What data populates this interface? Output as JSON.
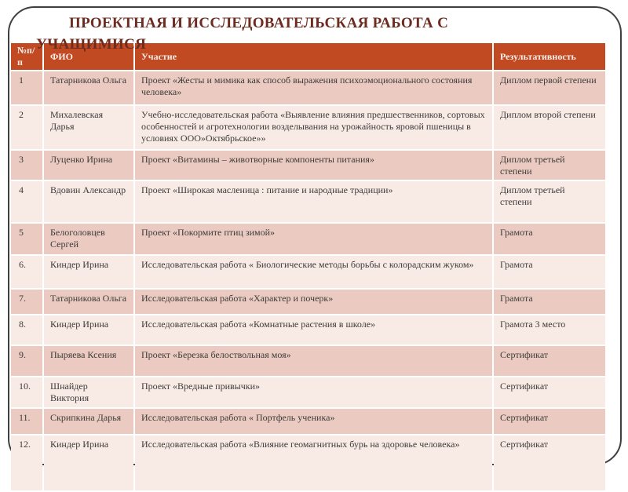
{
  "title": {
    "line1": "ПРОЕКТНАЯ И ИССЛЕДОВАТЕЛЬСКАЯ РАБОТА С",
    "line2": "УЧАЩИМИСЯ"
  },
  "table": {
    "columns": [
      "№п/п",
      "ФИО",
      "Участие",
      "Результативность"
    ],
    "rows": [
      {
        "num": "1",
        "fio": "Татарникова Ольга",
        "uchastie": "Проект «Жесты и мимика как способ выражения психоэмоционального состояния человека»",
        "result": "Диплом первой степени"
      },
      {
        "num": "2",
        "fio": "Михалевская Дарья",
        "uchastie": "Учебно-исследовательская работа «Выявление влияния предшественников, сортовых особенностей и агротехнологии возделывания на урожайность яровой пшеницы в условиях ООО»Октябрьское»»",
        "result": "Диплом второй степени"
      },
      {
        "num": "3",
        "fio": "Луценко Ирина",
        "uchastie": "Проект «Витамины – животворные компоненты питания»",
        "result": "Диплом третьей степени"
      },
      {
        "num": "4",
        "fio": "Вдовин Александр",
        "uchastie": "Проект «Широкая масленица : питание и народные традиции»",
        "result": "Диплом третьей степени"
      },
      {
        "num": "5",
        "fio": "Белоголовцев Сергей",
        "uchastie": "Проект «Покормите птиц зимой»",
        "result": "Грамота"
      },
      {
        "num": "6.",
        "fio": "Киндер Ирина",
        "uchastie": "Исследовательская работа « Биологические методы борьбы с колорадским жуком»",
        "result": "Грамота"
      },
      {
        "num": "7.",
        "fio": "Татарникова Ольга",
        "uchastie": "Исследовательская работа «Характер и почерк»",
        "result": "Грамота"
      },
      {
        "num": "8.",
        "fio": "Киндер Ирина",
        "uchastie": "Исследовательская работа «Комнатные растения в школе»",
        "result": "Грамота 3 место"
      },
      {
        "num": "9.",
        "fio": "Пыряева Ксения",
        "uchastie": "Проект «Березка белоствольная моя»",
        "result": "Сертификат"
      },
      {
        "num": "10.",
        "fio": "Шнайдер Виктория",
        "uchastie": "Проект «Вредные привычки»",
        "result": "Сертификат"
      },
      {
        "num": "11.",
        "fio": "Скрипкина Дарья",
        "uchastie": "Исследовательская работа « Портфель ученика»",
        "result": "Сертификат"
      },
      {
        "num": "12.",
        "fio": "Киндер Ирина",
        "uchastie": "Исследовательская работа «Влияние геомагнитных бурь на здоровье человека»",
        "result": "Сертификат"
      }
    ]
  },
  "colors": {
    "header_bg": "#c14a22",
    "header_text": "#f9efe9",
    "row_dark": "#eacac1",
    "row_light": "#f8eae5",
    "title_text": "#6e2b1f",
    "frame_border": "#3f3f3f"
  }
}
